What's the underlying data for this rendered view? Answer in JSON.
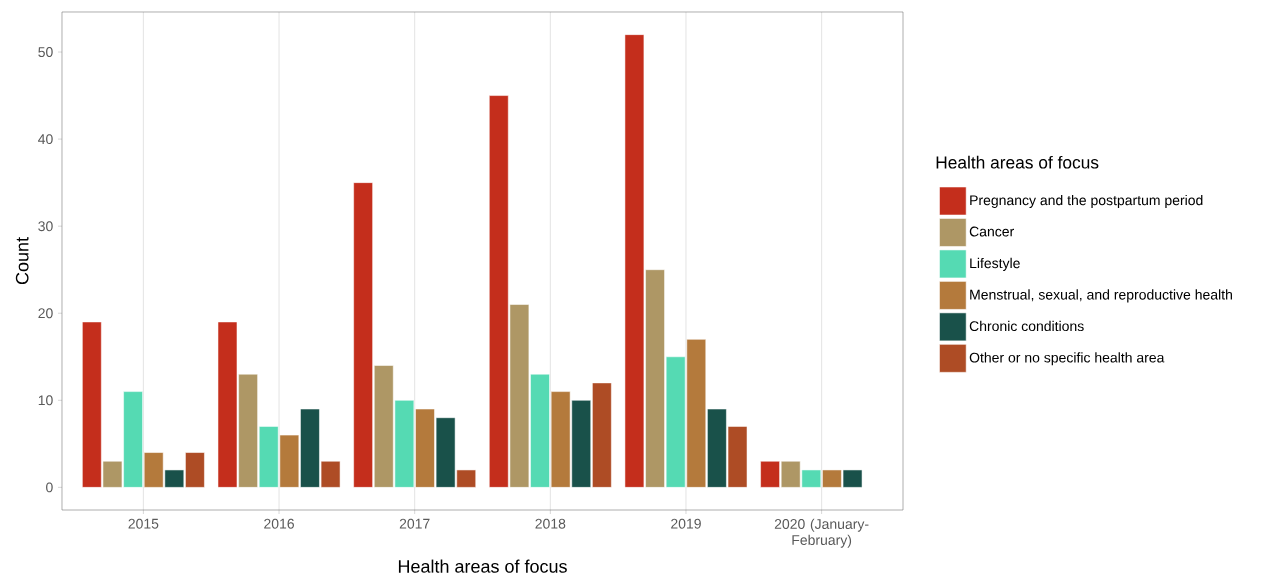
{
  "chart_data": {
    "type": "bar",
    "xlabel": "Health areas of focus",
    "ylabel": "Count",
    "legend_title": "Health areas of focus",
    "categories": [
      "2015",
      "2016",
      "2017",
      "2018",
      "2019",
      "2020 (January-February)"
    ],
    "series": [
      {
        "name": "Pregnancy and the postpartum period",
        "color": "#c42e1c",
        "values": [
          19,
          19,
          35,
          45,
          52,
          3
        ]
      },
      {
        "name": "Cancer",
        "color": "#ae9765",
        "values": [
          3,
          13,
          14,
          21,
          25,
          3
        ]
      },
      {
        "name": "Lifestyle",
        "color": "#55dab3",
        "values": [
          11,
          7,
          10,
          13,
          15,
          2
        ]
      },
      {
        "name": "Menstrual, sexual, and reproductive health",
        "color": "#b47a3c",
        "values": [
          4,
          6,
          9,
          11,
          17,
          2
        ]
      },
      {
        "name": "Chronic conditions",
        "color": "#19514a",
        "values": [
          2,
          9,
          8,
          10,
          9,
          2
        ]
      },
      {
        "name": "Other or no specific health area",
        "color": "#ae4c25",
        "values": [
          4,
          3,
          2,
          12,
          7,
          null
        ]
      }
    ],
    "ylim": [
      -2.6,
      54.6
    ],
    "yticks": [
      0,
      10,
      20,
      30,
      40,
      50
    ],
    "grid": "x",
    "legend": "right"
  }
}
